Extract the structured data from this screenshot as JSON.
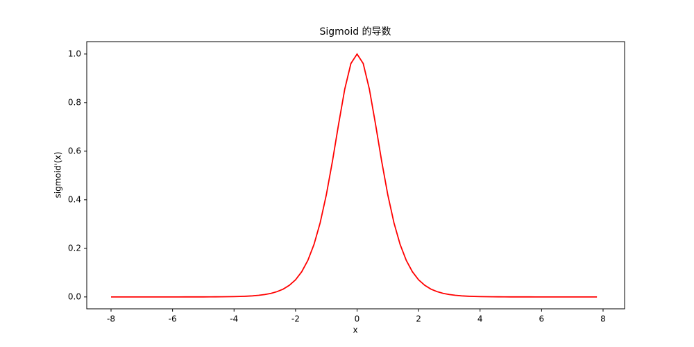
{
  "chart_data": {
    "type": "line",
    "title": "Sigmoid 的导数",
    "x_label": "x",
    "y_label": "sigmoid'(x)",
    "x": [
      -8,
      -7.8,
      -7.6,
      -7.4,
      -7.2,
      -7,
      -6.8,
      -6.6,
      -6.4,
      -6.2,
      -6,
      -5.8,
      -5.6,
      -5.4,
      -5.2,
      -5,
      -4.8,
      -4.6,
      -4.4,
      -4.2,
      -4,
      -3.8,
      -3.6,
      -3.4,
      -3.2,
      -3,
      -2.8,
      -2.6,
      -2.4,
      -2.2,
      -2,
      -1.8,
      -1.6,
      -1.4,
      -1.2,
      -1,
      -0.8,
      -0.6,
      -0.4,
      -0.2,
      0,
      0.2,
      0.4,
      0.6,
      0.8,
      1,
      1.2,
      1.4,
      1.6,
      1.8,
      2,
      2.2,
      2.4,
      2.6,
      2.8,
      3,
      3.2,
      3.4,
      3.6,
      3.8,
      4,
      4.2,
      4.4,
      4.6,
      4.8,
      5,
      5.2,
      5.4,
      5.6,
      5.8,
      6,
      6.2,
      6.4,
      6.6,
      6.8,
      7,
      7.2,
      7.4,
      7.6,
      7.8
    ],
    "series": [
      {
        "color": "#ff0000",
        "values": [
          0,
          0,
          0,
          0,
          0,
          0,
          1e-05,
          1e-05,
          1e-05,
          2e-05,
          2e-05,
          4e-05,
          5e-05,
          8e-05,
          0.00012,
          0.00018,
          0.00027,
          0.0004,
          0.0006,
          0.0009,
          0.00134,
          0.002,
          0.00298,
          0.00445,
          0.00662,
          0.00987,
          0.01468,
          0.02182,
          0.03238,
          0.04793,
          0.07065,
          0.10355,
          0.15052,
          0.21615,
          0.30502,
          0.41997,
          0.55906,
          0.71158,
          0.85564,
          0.96104,
          1,
          0.96104,
          0.85564,
          0.71158,
          0.55906,
          0.41997,
          0.30502,
          0.21615,
          0.15052,
          0.10355,
          0.07065,
          0.04793,
          0.03238,
          0.02182,
          0.01468,
          0.00987,
          0.00662,
          0.00445,
          0.00298,
          0.002,
          0.00134,
          0.0009,
          0.0006,
          0.0004,
          0.00027,
          0.00018,
          0.00012,
          8e-05,
          5e-05,
          4e-05,
          2e-05,
          2e-05,
          1e-05,
          1e-05,
          1e-05,
          0,
          0,
          0,
          0,
          0
        ]
      }
    ],
    "xlim": [
      -8.79,
      8.7
    ],
    "ylim": [
      -0.049,
      1.051
    ],
    "xticks": [
      -8,
      -6,
      -4,
      -2,
      0,
      2,
      4,
      6,
      8
    ],
    "yticks": [
      {
        "value": 0,
        "label": "0.0"
      },
      0.2,
      0.4,
      0.6,
      0.8,
      {
        "value": 1,
        "label": "1.0"
      }
    ],
    "grid": false
  }
}
